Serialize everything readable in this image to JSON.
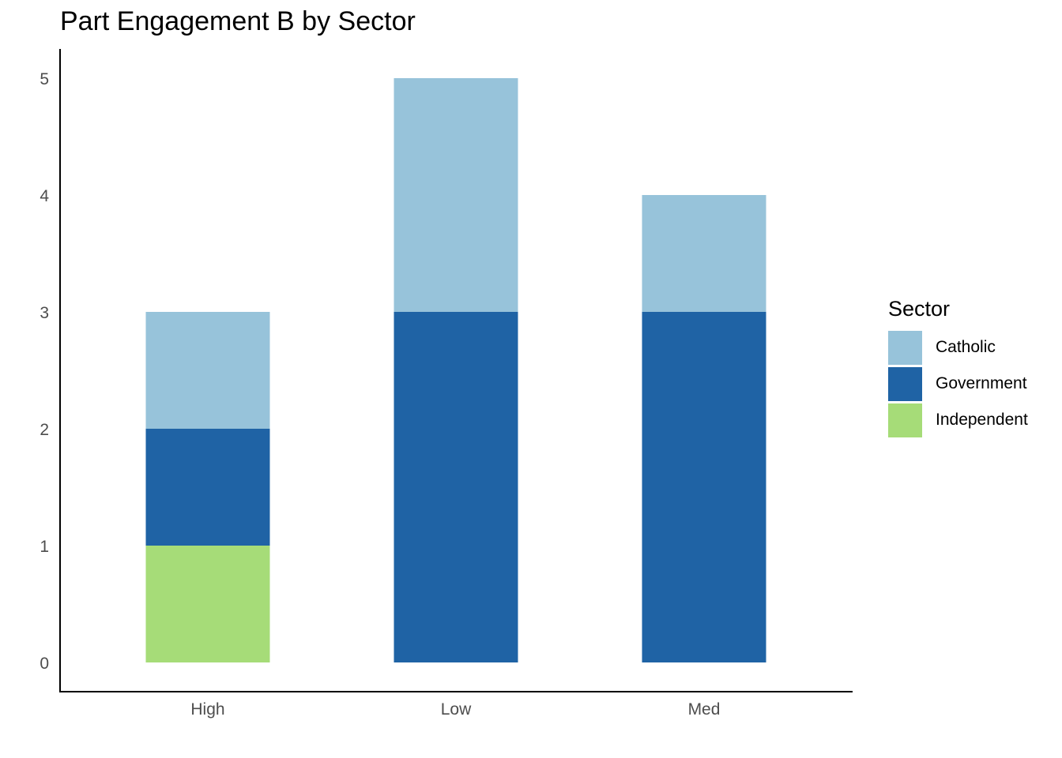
{
  "chart_data": {
    "type": "bar",
    "stacked": true,
    "title": "Part Engagement B by Sector",
    "xlabel": "",
    "ylabel": "",
    "categories": [
      "High",
      "Low",
      "Med"
    ],
    "ylim": [
      0,
      5
    ],
    "yticks": [
      "0",
      "1",
      "2",
      "3",
      "4",
      "5"
    ],
    "grid": false,
    "legend": {
      "title": "Sector",
      "position": "right"
    },
    "series": [
      {
        "name": "Independent",
        "color": "#a6dc78",
        "values": [
          1,
          0,
          0
        ]
      },
      {
        "name": "Government",
        "color": "#1f63a5",
        "values": [
          1,
          3,
          3
        ]
      },
      {
        "name": "Catholic",
        "color": "#97c3da",
        "values": [
          1,
          2,
          1
        ]
      }
    ],
    "legend_order": [
      "Catholic",
      "Government",
      "Independent"
    ]
  }
}
